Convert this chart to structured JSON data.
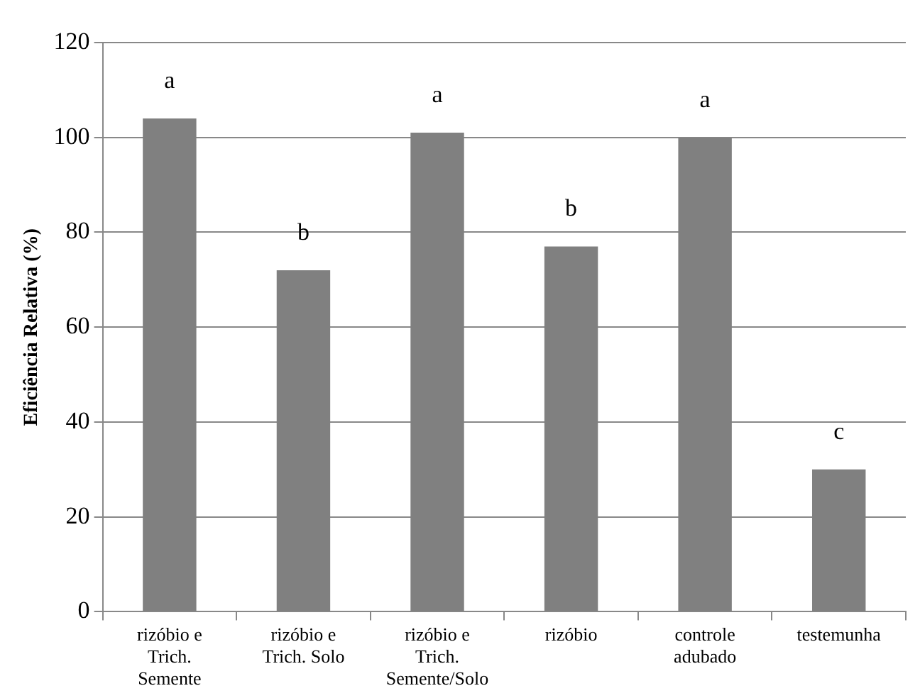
{
  "chart_data": {
    "type": "bar",
    "ylabel": "Eficiência Relativa (%)",
    "categories": [
      "rizóbio e Trich. Semente",
      "rizóbio e Trich. Solo",
      "rizóbio e Trich. Semente/Solo",
      "rizóbio",
      "controle adubado",
      "testemunha"
    ],
    "values": [
      104,
      72,
      101,
      77,
      100,
      30
    ],
    "color": "#808080",
    "ylim": [
      0,
      120
    ],
    "yticks": [
      0,
      20,
      40,
      60,
      80,
      100,
      120
    ],
    "grid": "y",
    "legend": false,
    "annotations": [
      "a",
      "b",
      "a",
      "b",
      "a",
      "c"
    ]
  }
}
